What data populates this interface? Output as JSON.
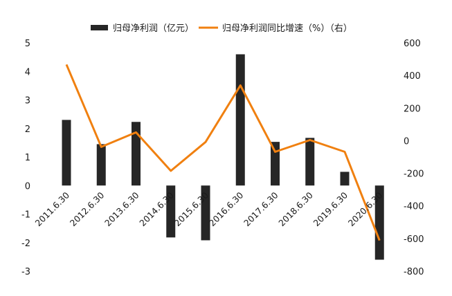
{
  "chart_data": {
    "type": "bar+line",
    "title": "",
    "categories": [
      "2011.6.30",
      "2012.6.30",
      "2013.6.30",
      "2014.6.30",
      "2015.6.30",
      "2016.6.30",
      "2017.6.30",
      "2018.6.30",
      "2019.6.30",
      "2020.6.30"
    ],
    "series": [
      {
        "name": "归母净利润（亿元）",
        "type": "bar",
        "axis": "left",
        "color": "#262626",
        "values": [
          2.3,
          1.45,
          2.23,
          -1.82,
          -1.92,
          4.6,
          1.53,
          1.67,
          0.48,
          -2.6
        ]
      },
      {
        "name": "归母净利润同比增速（%）（右）",
        "type": "line",
        "axis": "right",
        "color": "#F08010",
        "values": [
          467,
          -38,
          51,
          -185,
          -8,
          339,
          -68,
          4,
          -68,
          -612
        ]
      }
    ],
    "left_axis": {
      "min": -3,
      "max": 5,
      "step": 1,
      "ticks": [
        "5",
        "4",
        "3",
        "2",
        "1",
        "0",
        "-1",
        "-2",
        "-3"
      ]
    },
    "right_axis": {
      "min": -800,
      "max": 600,
      "step": 200,
      "ticks": [
        "600",
        "400",
        "200",
        "0",
        "-200",
        "-400",
        "-600",
        "-800"
      ]
    },
    "xlabel": "",
    "ylabel": "",
    "grid": false,
    "legend_position": "top"
  },
  "legend": {
    "bar_label": "归母净利润（亿元）",
    "line_label": "归母净利润同比增速（%）（右）"
  }
}
